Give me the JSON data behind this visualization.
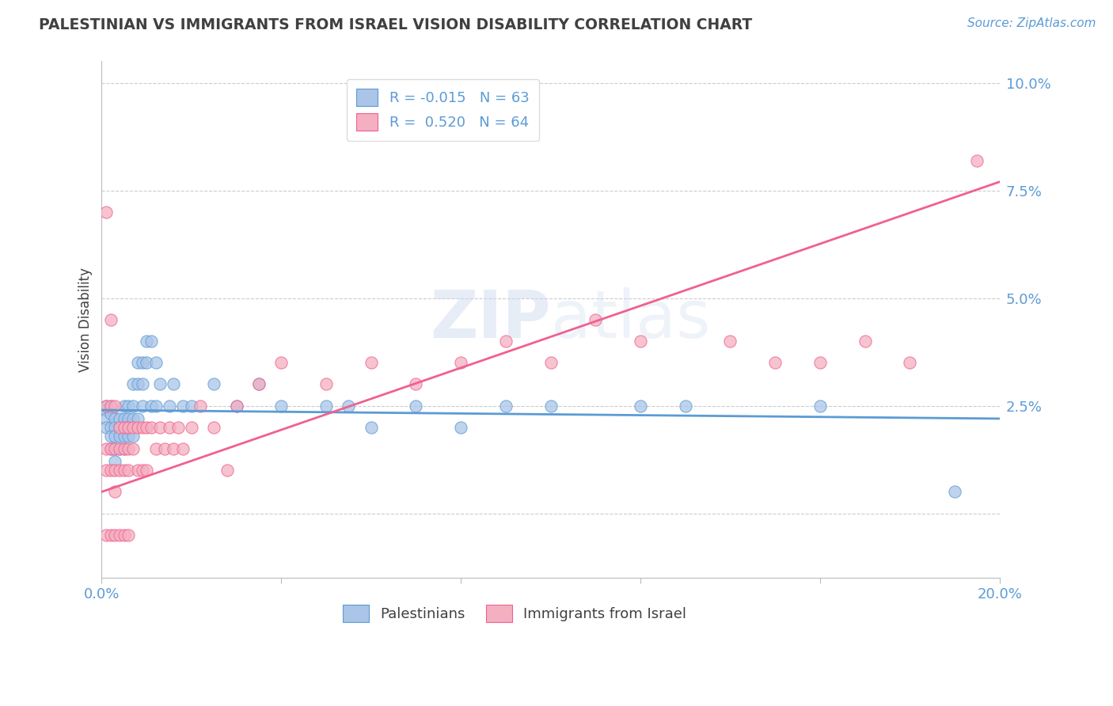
{
  "title": "PALESTINIAN VS IMMIGRANTS FROM ISRAEL VISION DISABILITY CORRELATION CHART",
  "source": "Source: ZipAtlas.com",
  "ylabel": "Vision Disability",
  "xlim": [
    0.0,
    0.2
  ],
  "ylim": [
    -0.015,
    0.105
  ],
  "yticks": [
    0.0,
    0.025,
    0.05,
    0.075,
    0.1
  ],
  "ytick_labels": [
    "",
    "2.5%",
    "5.0%",
    "7.5%",
    "10.0%"
  ],
  "xticks": [
    0.0,
    0.04,
    0.08,
    0.12,
    0.16,
    0.2
  ],
  "xtick_labels": [
    "0.0%",
    "",
    "",
    "",
    "",
    "20.0%"
  ],
  "legend_R1": "R = -0.015",
  "legend_N1": "N = 63",
  "legend_R2": "R =  0.520",
  "legend_N2": "N = 64",
  "series1_color": "#aac5e8",
  "series2_color": "#f4afc0",
  "trendline1_color": "#5b9bd5",
  "trendline2_color": "#f06090",
  "background_color": "#ffffff",
  "grid_color": "#cccccc",
  "title_color": "#404040",
  "label_color": "#5b9bd5",
  "watermark": "ZIPatlas",
  "palestinians_x": [
    0.001,
    0.001,
    0.001,
    0.001,
    0.002,
    0.002,
    0.002,
    0.002,
    0.002,
    0.003,
    0.003,
    0.003,
    0.003,
    0.003,
    0.004,
    0.004,
    0.004,
    0.004,
    0.005,
    0.005,
    0.005,
    0.005,
    0.005,
    0.006,
    0.006,
    0.006,
    0.006,
    0.007,
    0.007,
    0.007,
    0.007,
    0.008,
    0.008,
    0.008,
    0.009,
    0.009,
    0.009,
    0.01,
    0.01,
    0.011,
    0.011,
    0.012,
    0.012,
    0.013,
    0.015,
    0.016,
    0.018,
    0.02,
    0.025,
    0.03,
    0.035,
    0.04,
    0.05,
    0.055,
    0.06,
    0.07,
    0.08,
    0.09,
    0.1,
    0.12,
    0.13,
    0.16,
    0.19
  ],
  "palestinians_y": [
    0.025,
    0.024,
    0.022,
    0.02,
    0.025,
    0.023,
    0.02,
    0.018,
    0.015,
    0.022,
    0.02,
    0.018,
    0.015,
    0.012,
    0.022,
    0.02,
    0.018,
    0.015,
    0.025,
    0.022,
    0.02,
    0.018,
    0.015,
    0.025,
    0.022,
    0.02,
    0.018,
    0.03,
    0.025,
    0.022,
    0.018,
    0.035,
    0.03,
    0.022,
    0.035,
    0.03,
    0.025,
    0.04,
    0.035,
    0.04,
    0.025,
    0.035,
    0.025,
    0.03,
    0.025,
    0.03,
    0.025,
    0.025,
    0.03,
    0.025,
    0.03,
    0.025,
    0.025,
    0.025,
    0.02,
    0.025,
    0.02,
    0.025,
    0.025,
    0.025,
    0.025,
    0.025,
    0.005
  ],
  "immigrants_x": [
    0.001,
    0.001,
    0.001,
    0.001,
    0.001,
    0.002,
    0.002,
    0.002,
    0.002,
    0.002,
    0.003,
    0.003,
    0.003,
    0.003,
    0.003,
    0.004,
    0.004,
    0.004,
    0.004,
    0.005,
    0.005,
    0.005,
    0.005,
    0.006,
    0.006,
    0.006,
    0.006,
    0.007,
    0.007,
    0.008,
    0.008,
    0.009,
    0.009,
    0.01,
    0.01,
    0.011,
    0.012,
    0.013,
    0.014,
    0.015,
    0.016,
    0.017,
    0.018,
    0.02,
    0.022,
    0.025,
    0.028,
    0.03,
    0.035,
    0.04,
    0.05,
    0.06,
    0.07,
    0.08,
    0.09,
    0.1,
    0.11,
    0.12,
    0.14,
    0.15,
    0.16,
    0.17,
    0.18,
    0.195
  ],
  "immigrants_y": [
    0.07,
    0.025,
    0.015,
    0.01,
    -0.005,
    0.045,
    0.025,
    0.015,
    0.01,
    -0.005,
    0.025,
    0.015,
    0.01,
    0.005,
    -0.005,
    0.02,
    0.015,
    0.01,
    -0.005,
    0.02,
    0.015,
    0.01,
    -0.005,
    0.02,
    0.015,
    0.01,
    -0.005,
    0.02,
    0.015,
    0.02,
    0.01,
    0.02,
    0.01,
    0.02,
    0.01,
    0.02,
    0.015,
    0.02,
    0.015,
    0.02,
    0.015,
    0.02,
    0.015,
    0.02,
    0.025,
    0.02,
    0.01,
    0.025,
    0.03,
    0.035,
    0.03,
    0.035,
    0.03,
    0.035,
    0.04,
    0.035,
    0.045,
    0.04,
    0.04,
    0.035,
    0.035,
    0.04,
    0.035,
    0.082
  ],
  "trendline1_x": [
    0.0,
    0.2
  ],
  "trendline1_y": [
    0.024,
    0.022
  ],
  "trendline2_x": [
    0.0,
    0.2
  ],
  "trendline2_y": [
    0.005,
    0.077
  ]
}
